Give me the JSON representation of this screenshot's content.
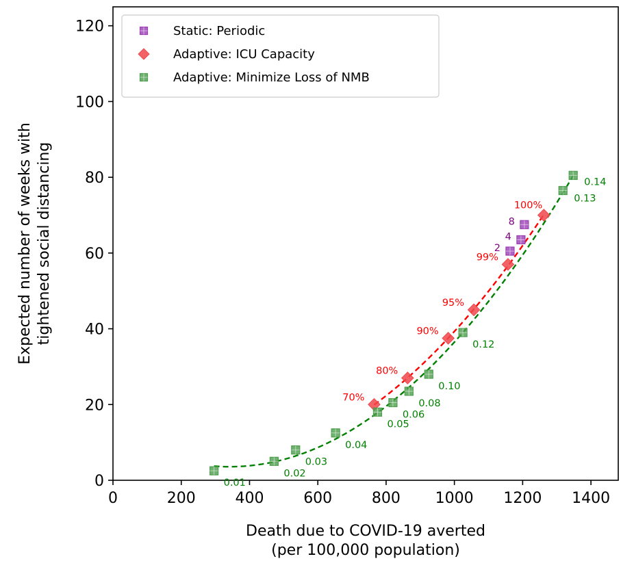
{
  "chart_data": {
    "type": "scatter",
    "xlabel": [
      "Death due to COVID-19 averted",
      "(per 100,000 population)"
    ],
    "ylabel": [
      "Expected number of weeks with",
      "tightened social distancing"
    ],
    "xlim": [
      0,
      1480
    ],
    "ylim": [
      0,
      125
    ],
    "xticks": [
      0,
      200,
      400,
      600,
      800,
      1000,
      1200,
      1400
    ],
    "yticks": [
      0,
      20,
      40,
      60,
      80,
      100,
      120
    ],
    "legend_position": "top-left",
    "series": [
      {
        "name": "Static: Periodic",
        "marker": "square",
        "color": "#9b3fb5",
        "label_color": "#800080",
        "points": [
          {
            "x": 1163,
            "y": 60.5,
            "label": "2"
          },
          {
            "x": 1195,
            "y": 63.5,
            "label": "4"
          },
          {
            "x": 1205,
            "y": 67.5,
            "label": "8"
          }
        ]
      },
      {
        "name": "Adaptive: ICU Capacity",
        "marker": "diamond",
        "color": "#f0484c",
        "label_color": "#ff0000",
        "points": [
          {
            "x": 765,
            "y": 20,
            "label": "70%"
          },
          {
            "x": 863,
            "y": 27,
            "label": "80%"
          },
          {
            "x": 982,
            "y": 37.5,
            "label": "90%"
          },
          {
            "x": 1057,
            "y": 45,
            "label": "95%"
          },
          {
            "x": 1157,
            "y": 57,
            "label": "99%"
          },
          {
            "x": 1262,
            "y": 70,
            "label": "100%"
          }
        ]
      },
      {
        "name": "Adaptive: Minimize Loss of NMB",
        "marker": "square",
        "color": "#4d9e4d",
        "label_color": "#008000",
        "points": [
          {
            "x": 296,
            "y": 2.5,
            "label": "0.01"
          },
          {
            "x": 472,
            "y": 5,
            "label": "0.02"
          },
          {
            "x": 535,
            "y": 8,
            "label": "0.03"
          },
          {
            "x": 652,
            "y": 12.5,
            "label": "0.04"
          },
          {
            "x": 775,
            "y": 18,
            "label": "0.05"
          },
          {
            "x": 820,
            "y": 20.5,
            "label": "0.06"
          },
          {
            "x": 867,
            "y": 23.5,
            "label": "0.08"
          },
          {
            "x": 925,
            "y": 28,
            "label": "0.10"
          },
          {
            "x": 1025,
            "y": 39,
            "label": "0.12"
          },
          {
            "x": 1318,
            "y": 76.5,
            "label": "0.13"
          },
          {
            "x": 1348,
            "y": 80.5,
            "label": "0.14"
          }
        ]
      }
    ],
    "fit_lines": [
      {
        "series": "Adaptive: ICU Capacity",
        "style": "dashed",
        "color": "#ff0000",
        "x_range": [
          765,
          1262
        ]
      },
      {
        "series": "Adaptive: Minimize Loss of NMB",
        "style": "dashed",
        "color": "#008000",
        "x_range": [
          296,
          1348
        ]
      }
    ]
  }
}
